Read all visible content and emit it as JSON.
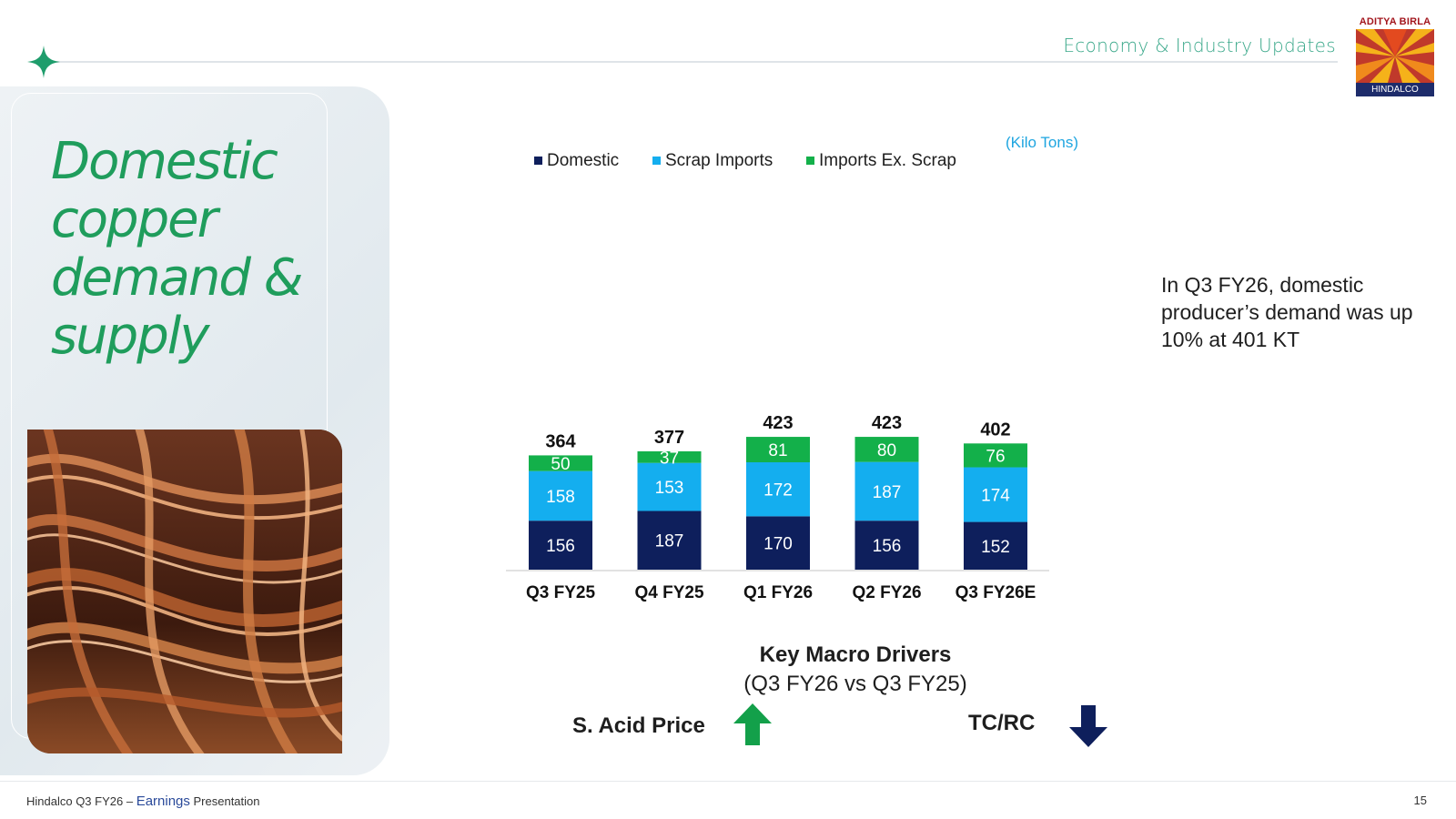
{
  "header": {
    "section_title": "Economy & Industry Updates",
    "logo_brand": "ADITYA BIRLA",
    "logo_sub": "HINDALCO"
  },
  "left": {
    "headline": "Domestic copper demand & supply"
  },
  "chart_data": {
    "type": "bar",
    "stacked": true,
    "categories": [
      "Q3 FY25",
      "Q4 FY25",
      "Q1 FY26",
      "Q2 FY26",
      "Q3 FY26E"
    ],
    "series": [
      {
        "name": "Domestic",
        "color": "#0e1f5c",
        "values": [
          156,
          187,
          170,
          156,
          152
        ]
      },
      {
        "name": "Scrap Imports",
        "color": "#14aeef",
        "values": [
          158,
          153,
          172,
          187,
          174
        ]
      },
      {
        "name": "Imports Ex. Scrap",
        "color": "#13b04a",
        "values": [
          50,
          37,
          81,
          80,
          76
        ]
      }
    ],
    "totals": [
      364,
      377,
      423,
      423,
      402
    ],
    "unit_note": "(Kilo Tons)",
    "legend_position": "top",
    "grid": false
  },
  "side_note": "In Q3 FY26, domestic producer’s demand was up 10% at 401 KT",
  "macro": {
    "title": "Key Macro Drivers",
    "subtitle": "(Q3 FY26 vs Q3 FY25)",
    "drivers": [
      {
        "label": "S. Acid Price",
        "direction": "up",
        "color": "#13a04a"
      },
      {
        "label": "TC/RC",
        "direction": "down",
        "color": "#0e1f5c"
      }
    ]
  },
  "footer": {
    "company": "Hindalco Q3 FY26 – ",
    "emphasis": "Earnings",
    "suffix": " Presentation",
    "page": "15"
  }
}
